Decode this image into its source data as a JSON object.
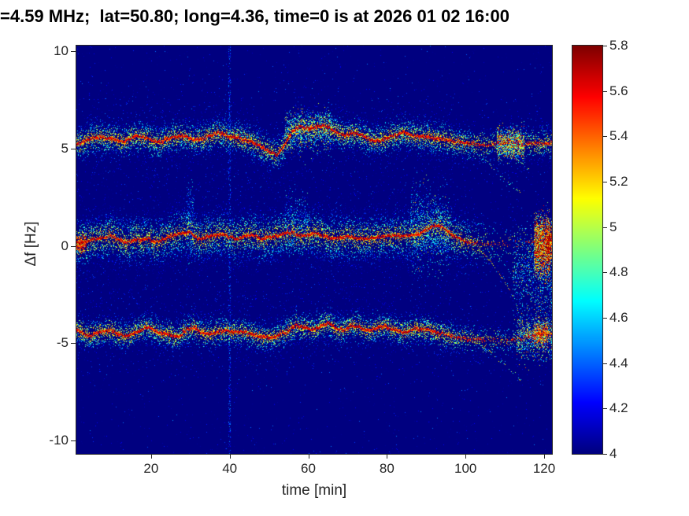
{
  "figure": {
    "background_color": "#ffffff",
    "title_color": "#000000",
    "axis_text_color": "#262626"
  },
  "chart_data": {
    "type": "heatmap",
    "title": "=4.59 MHz;  lat=50.80; long=4.36, time=0 is at 2026 01 02 16:00",
    "xlabel": "time [min]",
    "ylabel": "Δf [Hz]",
    "xlim": [
      1,
      122
    ],
    "ylim": [
      -10.7,
      10.3
    ],
    "xticks": [
      20,
      40,
      60,
      80,
      100,
      120
    ],
    "yticks": [
      "10",
      "5",
      "0",
      "-5",
      "-10"
    ],
    "grid": false,
    "colormap": "jet",
    "background_value": 4.0,
    "colorbar": {
      "min": 4,
      "max": 5.8,
      "tick_labels": [
        "5.8",
        "5.6",
        "5.4",
        "5.2",
        "5",
        "4.8",
        "4.6",
        "4.4",
        "4.2",
        "4"
      ],
      "position": "right"
    },
    "traces": [
      {
        "name": "band_plus5Hz",
        "speckle_sigma_hz": 0.42,
        "speckle_per_col": 11,
        "value_falloff": 1.1,
        "points": [
          [
            1,
            5.25,
            1
          ],
          [
            4,
            5.45,
            1
          ],
          [
            7,
            5.6,
            1
          ],
          [
            10,
            5.5,
            1
          ],
          [
            13,
            5.35,
            1
          ],
          [
            16,
            5.65,
            1
          ],
          [
            19,
            5.55,
            1
          ],
          [
            22,
            5.3,
            1
          ],
          [
            25,
            5.55,
            1
          ],
          [
            28,
            5.7,
            1
          ],
          [
            31,
            5.45,
            1
          ],
          [
            34,
            5.55,
            1
          ],
          [
            37,
            5.8,
            1
          ],
          [
            40,
            5.65,
            1
          ],
          [
            43,
            5.5,
            1
          ],
          [
            46,
            5.3,
            1
          ],
          [
            48,
            5.1,
            1
          ],
          [
            50,
            4.85,
            0.9
          ],
          [
            52,
            4.65,
            0.9
          ],
          [
            54,
            5.2,
            1
          ],
          [
            56,
            5.9,
            1
          ],
          [
            58,
            6.15,
            1
          ],
          [
            60,
            6.0,
            1
          ],
          [
            62,
            6.1,
            1
          ],
          [
            64,
            6.2,
            1
          ],
          [
            66,
            6.0,
            1
          ],
          [
            68,
            5.75,
            1
          ],
          [
            70,
            5.7,
            1
          ],
          [
            72,
            5.8,
            1
          ],
          [
            74,
            5.65,
            1
          ],
          [
            76,
            5.45,
            1
          ],
          [
            78,
            5.4,
            1
          ],
          [
            80,
            5.55,
            1
          ],
          [
            82,
            5.65,
            1
          ],
          [
            84,
            5.85,
            1
          ],
          [
            86,
            5.7,
            1
          ],
          [
            88,
            5.65,
            1
          ],
          [
            90,
            5.6,
            1
          ],
          [
            92,
            5.55,
            1
          ],
          [
            94,
            5.5,
            0.95
          ],
          [
            96,
            5.4,
            0.9
          ],
          [
            98,
            5.35,
            0.85
          ],
          [
            100,
            5.3,
            0.7
          ],
          [
            103,
            5.2,
            0.5
          ],
          [
            106,
            5.15,
            0.4
          ],
          [
            109,
            5.3,
            0.45
          ],
          [
            112,
            5.35,
            0.5
          ],
          [
            115,
            5.2,
            0.5
          ],
          [
            118,
            5.3,
            0.7
          ],
          [
            120,
            5.25,
            0.75
          ],
          [
            122,
            5.3,
            0.7
          ]
        ]
      },
      {
        "name": "band_0Hz",
        "speckle_sigma_hz": 0.8,
        "speckle_per_col": 15,
        "value_falloff": 0.9,
        "points": [
          [
            1,
            0.15,
            1
          ],
          [
            4,
            0.25,
            1
          ],
          [
            7,
            0.4,
            1
          ],
          [
            10,
            0.5,
            1
          ],
          [
            13,
            0.2,
            1
          ],
          [
            16,
            0.3,
            1
          ],
          [
            19,
            0.35,
            1
          ],
          [
            22,
            0.2,
            1
          ],
          [
            25,
            0.5,
            1
          ],
          [
            28,
            0.65,
            1
          ],
          [
            30,
            0.7,
            1
          ],
          [
            32,
            0.3,
            1
          ],
          [
            34,
            0.45,
            1
          ],
          [
            36,
            0.55,
            1
          ],
          [
            38,
            0.6,
            1
          ],
          [
            40,
            0.45,
            1
          ],
          [
            42,
            0.35,
            1
          ],
          [
            44,
            0.5,
            1
          ],
          [
            46,
            0.55,
            1
          ],
          [
            48,
            0.35,
            1
          ],
          [
            50,
            0.45,
            1
          ],
          [
            52,
            0.5,
            1
          ],
          [
            54,
            0.65,
            1
          ],
          [
            56,
            0.7,
            1
          ],
          [
            58,
            0.5,
            1
          ],
          [
            60,
            0.55,
            1
          ],
          [
            62,
            0.65,
            1
          ],
          [
            64,
            0.5,
            1
          ],
          [
            66,
            0.4,
            1
          ],
          [
            68,
            0.45,
            1
          ],
          [
            70,
            0.5,
            1
          ],
          [
            72,
            0.4,
            1
          ],
          [
            74,
            0.35,
            1
          ],
          [
            76,
            0.4,
            1
          ],
          [
            78,
            0.45,
            1
          ],
          [
            80,
            0.5,
            1
          ],
          [
            82,
            0.55,
            1
          ],
          [
            84,
            0.5,
            1
          ],
          [
            86,
            0.55,
            1
          ],
          [
            88,
            0.6,
            1
          ],
          [
            90,
            0.85,
            1
          ],
          [
            92,
            1.0,
            1
          ],
          [
            93,
            1.05,
            1
          ],
          [
            95,
            0.8,
            1
          ],
          [
            97,
            0.5,
            0.95
          ],
          [
            99,
            0.3,
            0.9
          ],
          [
            101,
            0.2,
            0.7
          ],
          [
            103,
            0.15,
            0.5
          ],
          [
            105,
            0.1,
            0.3
          ],
          [
            108,
            0.1,
            0.15
          ],
          [
            112,
            0.15,
            0.1
          ],
          [
            116,
            0.2,
            0.15
          ],
          [
            119,
            0.25,
            0.3
          ],
          [
            122,
            0.3,
            0.5
          ]
        ]
      },
      {
        "name": "band_minus5Hz",
        "speckle_sigma_hz": 0.38,
        "speckle_per_col": 10,
        "value_falloff": 1.2,
        "points": [
          [
            1,
            -4.3,
            1
          ],
          [
            4,
            -4.65,
            1
          ],
          [
            7,
            -4.45,
            1
          ],
          [
            10,
            -4.35,
            1
          ],
          [
            13,
            -4.65,
            1
          ],
          [
            16,
            -4.5,
            1
          ],
          [
            19,
            -4.2,
            1
          ],
          [
            22,
            -4.45,
            1
          ],
          [
            25,
            -4.6,
            1
          ],
          [
            27,
            -4.7,
            1
          ],
          [
            29,
            -4.3,
            1
          ],
          [
            31,
            -4.25,
            1
          ],
          [
            33,
            -4.45,
            1
          ],
          [
            35,
            -4.55,
            1
          ],
          [
            37,
            -4.4,
            1
          ],
          [
            39,
            -4.35,
            1
          ],
          [
            41,
            -4.45,
            1
          ],
          [
            43,
            -4.4,
            1
          ],
          [
            45,
            -4.5,
            1
          ],
          [
            47,
            -4.65,
            1
          ],
          [
            49,
            -4.7,
            1
          ],
          [
            51,
            -4.75,
            1
          ],
          [
            53,
            -4.55,
            1
          ],
          [
            55,
            -4.35,
            1
          ],
          [
            57,
            -4.05,
            1
          ],
          [
            59,
            -4.2,
            1
          ],
          [
            61,
            -4.3,
            1
          ],
          [
            63,
            -4.15,
            1
          ],
          [
            65,
            -3.95,
            1
          ],
          [
            67,
            -4.25,
            1
          ],
          [
            69,
            -4.35,
            1
          ],
          [
            71,
            -4.1,
            1
          ],
          [
            73,
            -4.2,
            1
          ],
          [
            75,
            -4.35,
            1
          ],
          [
            77,
            -4.3,
            1
          ],
          [
            79,
            -4.15,
            1
          ],
          [
            81,
            -4.25,
            1
          ],
          [
            83,
            -4.4,
            1
          ],
          [
            85,
            -4.45,
            1
          ],
          [
            87,
            -4.25,
            1
          ],
          [
            89,
            -4.3,
            1
          ],
          [
            91,
            -4.35,
            1
          ],
          [
            93,
            -4.45,
            0.95
          ],
          [
            95,
            -4.6,
            0.9
          ],
          [
            97,
            -4.7,
            0.8
          ],
          [
            99,
            -4.75,
            0.7
          ],
          [
            101,
            -4.8,
            0.55
          ],
          [
            104,
            -4.85,
            0.4
          ],
          [
            107,
            -4.8,
            0.3
          ],
          [
            110,
            -4.9,
            0.25
          ],
          [
            113,
            -4.8,
            0.3
          ],
          [
            116,
            -4.7,
            0.4
          ],
          [
            118,
            -4.55,
            0.6
          ],
          [
            120,
            -4.5,
            0.65
          ],
          [
            122,
            -4.55,
            0.6
          ]
        ]
      }
    ],
    "streaks": [
      {
        "name": "upper-split-a",
        "density": 0.5,
        "vmin": 4.6,
        "vmax": 5.2,
        "points": [
          [
            98,
            5.45
          ],
          [
            104,
            4.6
          ],
          [
            110,
            3.4
          ],
          [
            114,
            2.7
          ]
        ]
      },
      {
        "name": "upper-split-b",
        "density": 0.45,
        "vmin": 4.5,
        "vmax": 5.1,
        "points": [
          [
            104,
            5.6
          ],
          [
            110,
            4.9
          ],
          [
            116,
            4.0
          ]
        ]
      },
      {
        "name": "carrier-swoop",
        "density": 0.75,
        "vmin": 4.9,
        "vmax": 5.5,
        "points": [
          [
            102,
            0.15
          ],
          [
            106,
            -0.7
          ],
          [
            109,
            -1.6
          ],
          [
            112,
            -2.5
          ]
        ]
      },
      {
        "name": "carrier-swoop-echo",
        "density": 0.3,
        "vmin": 4.4,
        "vmax": 4.9,
        "points": [
          [
            105,
            0.3
          ],
          [
            110,
            -1.0
          ],
          [
            114,
            -2.2
          ]
        ]
      },
      {
        "name": "lower-split-a",
        "density": 0.5,
        "vmin": 4.6,
        "vmax": 5.2,
        "points": [
          [
            101,
            -4.75
          ],
          [
            106,
            -5.4
          ],
          [
            110,
            -6.1
          ],
          [
            114,
            -6.9
          ]
        ]
      },
      {
        "name": "lower-split-b",
        "density": 0.35,
        "vmin": 4.4,
        "vmax": 5.0,
        "points": [
          [
            108,
            -4.4
          ],
          [
            113,
            -5.3
          ],
          [
            117,
            -6.0
          ]
        ]
      }
    ],
    "blobs": [
      {
        "t0": 1,
        "t1": 3.5,
        "f": 0.1,
        "sigma": 0.25,
        "n": 350,
        "v": 5.4,
        "vspread": 0.25
      },
      {
        "t0": 29,
        "t1": 31,
        "f": 1.3,
        "sigma": 0.9,
        "n": 220,
        "v": 4.35,
        "vspread": 0.25
      },
      {
        "t0": 54,
        "t1": 60,
        "f": 1.2,
        "sigma": 0.7,
        "n": 300,
        "v": 4.35,
        "vspread": 0.25
      },
      {
        "t0": 54,
        "t1": 66,
        "f": 5.9,
        "sigma": 0.55,
        "n": 700,
        "v": 4.7,
        "vspread": 0.35
      },
      {
        "t0": 86,
        "t1": 96,
        "f": 0.8,
        "sigma": 1.1,
        "n": 900,
        "v": 4.5,
        "vspread": 0.3
      },
      {
        "t0": 108,
        "t1": 115,
        "f": 5.25,
        "sigma": 0.4,
        "n": 1100,
        "v": 4.85,
        "vspread": 0.45
      },
      {
        "t0": 117.5,
        "t1": 121.5,
        "f": 0.0,
        "sigma": 0.7,
        "n": 2200,
        "v": 5.2,
        "vspread": 0.45
      },
      {
        "t0": 112,
        "t1": 122,
        "f": -1.6,
        "sigma": 1.2,
        "n": 1100,
        "v": 4.45,
        "vspread": 0.35
      },
      {
        "t0": 120.5,
        "t1": 122,
        "f": 0.2,
        "sigma": 0.5,
        "n": 400,
        "v": 5.4,
        "vspread": 0.3
      },
      {
        "t0": 113,
        "t1": 122,
        "f": -4.7,
        "sigma": 0.6,
        "n": 800,
        "v": 4.7,
        "vspread": 0.4
      },
      {
        "t0": 117.5,
        "t1": 121,
        "f": -4.5,
        "sigma": 0.3,
        "n": 450,
        "v": 5.3,
        "vspread": 0.3
      }
    ],
    "vertical_stripe": {
      "t": 40,
      "n": 500,
      "vmin": 4.08,
      "vmax": 4.5
    },
    "noise": {
      "n_global": 2600,
      "vmin": 4.03,
      "vmax": 4.48
    }
  }
}
